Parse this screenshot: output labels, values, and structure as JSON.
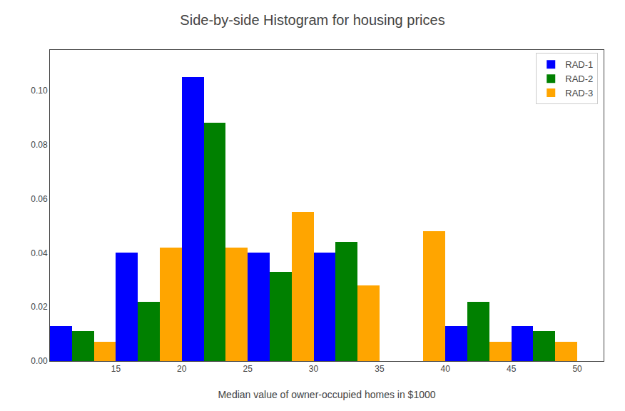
{
  "chart_data": {
    "type": "histogram",
    "title": "Side-by-side Histogram for housing prices",
    "xlabel": "Median value of owner-occupied homes in $1000",
    "bins": [
      10,
      15,
      20,
      25,
      30,
      35,
      40,
      45,
      50
    ],
    "series": [
      {
        "name": "RAD-1",
        "color": "blue",
        "values": [
          0.013,
          0.04,
          0.105,
          0.04,
          0.04,
          0.0,
          0.013,
          0.013
        ]
      },
      {
        "name": "RAD-2",
        "color": "green",
        "values": [
          0.011,
          0.022,
          0.088,
          0.033,
          0.044,
          0.0,
          0.022,
          0.011
        ]
      },
      {
        "name": "RAD-3",
        "color": "orange",
        "values": [
          0.007,
          0.042,
          0.042,
          0.055,
          0.028,
          0.048,
          0.007,
          0.007
        ]
      }
    ],
    "xlim": [
      10,
      52
    ],
    "xticks": [
      15,
      20,
      25,
      30,
      35,
      40,
      45,
      50
    ],
    "ylim": [
      0,
      0.115
    ],
    "yticks": [
      {
        "value": 0.0,
        "label": "0.00"
      },
      {
        "value": 0.02,
        "label": "0.02"
      },
      {
        "value": 0.04,
        "label": "0.04"
      },
      {
        "value": 0.06,
        "label": "0.06"
      },
      {
        "value": 0.08,
        "label": "0.08"
      },
      {
        "value": 0.1,
        "label": "0.10"
      }
    ],
    "legend": "upper right",
    "grid": false
  }
}
